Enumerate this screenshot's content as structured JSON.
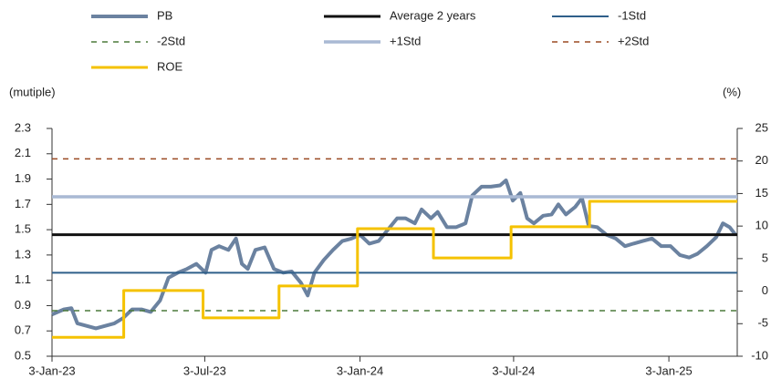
{
  "chart_data": {
    "type": "line",
    "ylabel": "(mutiple)",
    "y2label": "(%)",
    "xlim": [
      "2023-01-03",
      "2025-03-25"
    ],
    "xticks": [
      {
        "value": "2023-01-03",
        "label": "3-Jan-23"
      },
      {
        "value": "2023-07-03",
        "label": "3-Jul-23"
      },
      {
        "value": "2024-01-03",
        "label": "3-Jan-24"
      },
      {
        "value": "2024-07-03",
        "label": "3-Jul-24"
      },
      {
        "value": "2025-01-03",
        "label": "3-Jan-25"
      }
    ],
    "ylim": [
      0.5,
      2.3
    ],
    "yticks": [
      0.5,
      0.7,
      0.9,
      1.1,
      1.3,
      1.5,
      1.7,
      1.9,
      2.1,
      2.3
    ],
    "y2lim": [
      -10,
      25
    ],
    "y2ticks": [
      -10,
      -5,
      0,
      5,
      10,
      15,
      20,
      25
    ],
    "grid": false,
    "series": [
      {
        "name": "PB",
        "color": "#6b82a0",
        "x": [
          "2023-01-03",
          "2023-01-17",
          "2023-01-26",
          "2023-02-02",
          "2023-02-13",
          "2023-02-24",
          "2023-03-07",
          "2023-03-18",
          "2023-03-28",
          "2023-04-08",
          "2023-04-19",
          "2023-04-30",
          "2023-05-11",
          "2023-05-21",
          "2023-06-01",
          "2023-06-12",
          "2023-06-23",
          "2023-07-04",
          "2023-07-11",
          "2023-07-20",
          "2023-07-31",
          "2023-08-09",
          "2023-08-16",
          "2023-08-23",
          "2023-09-01",
          "2023-09-12",
          "2023-09-23",
          "2023-10-04",
          "2023-10-14",
          "2023-10-25",
          "2023-11-02",
          "2023-11-10",
          "2023-11-21",
          "2023-12-02",
          "2023-12-13",
          "2023-12-24",
          "2024-01-03",
          "2024-01-14",
          "2024-01-25",
          "2024-02-05",
          "2024-02-16",
          "2024-02-26",
          "2024-03-08",
          "2024-03-16",
          "2024-03-27",
          "2024-04-04",
          "2024-04-15",
          "2024-04-26",
          "2024-05-07",
          "2024-05-15",
          "2024-05-26",
          "2024-06-06",
          "2024-06-17",
          "2024-06-24",
          "2024-07-02",
          "2024-07-11",
          "2024-07-19",
          "2024-07-27",
          "2024-08-07",
          "2024-08-17",
          "2024-08-25",
          "2024-09-03",
          "2024-09-14",
          "2024-09-22",
          "2024-09-30",
          "2024-10-10",
          "2024-10-21",
          "2024-11-01",
          "2024-11-12",
          "2024-11-22",
          "2024-12-03",
          "2024-12-14",
          "2024-12-25",
          "2025-01-05",
          "2025-01-16",
          "2025-01-27",
          "2025-02-06",
          "2025-02-17",
          "2025-02-28",
          "2025-03-08",
          "2025-03-16",
          "2025-03-23"
        ],
        "values": [
          0.83,
          0.87,
          0.88,
          0.76,
          0.74,
          0.72,
          0.74,
          0.76,
          0.8,
          0.87,
          0.87,
          0.85,
          0.94,
          1.12,
          1.16,
          1.19,
          1.23,
          1.16,
          1.34,
          1.37,
          1.34,
          1.43,
          1.23,
          1.19,
          1.34,
          1.36,
          1.19,
          1.16,
          1.17,
          1.08,
          0.98,
          1.16,
          1.26,
          1.34,
          1.41,
          1.43,
          1.46,
          1.39,
          1.41,
          1.5,
          1.59,
          1.59,
          1.55,
          1.66,
          1.59,
          1.64,
          1.52,
          1.52,
          1.55,
          1.77,
          1.84,
          1.84,
          1.85,
          1.89,
          1.73,
          1.79,
          1.59,
          1.55,
          1.61,
          1.62,
          1.7,
          1.62,
          1.68,
          1.75,
          1.53,
          1.52,
          1.46,
          1.43,
          1.37,
          1.39,
          1.41,
          1.43,
          1.37,
          1.37,
          1.3,
          1.28,
          1.31,
          1.37,
          1.44,
          1.55,
          1.52,
          1.46
        ]
      },
      {
        "name": "Average 2 years",
        "color": "#111111",
        "value": 1.46
      },
      {
        "name": "-1Std",
        "color": "#2f5f8a",
        "value": 1.16
      },
      {
        "name": "-2Std",
        "color": "#4b7a3a",
        "value": 0.86,
        "line_style": "dashed"
      },
      {
        "name": "+1Std",
        "color": "#a9b9d4",
        "value": 1.76
      },
      {
        "name": "+2Std",
        "color": "#9b4a22",
        "value": 2.06,
        "line_style": "dashed"
      },
      {
        "name": "ROE",
        "color": "#f5c200",
        "axis": "y2",
        "step": true,
        "x": [
          "2023-01-03",
          "2023-03-29",
          "2023-07-01",
          "2023-09-29",
          "2023-12-31",
          "2024-03-30",
          "2024-06-30",
          "2024-10-01",
          "2025-03-25"
        ],
        "values": [
          -7.1,
          0.1,
          -4.1,
          0.8,
          9.6,
          5.1,
          9.9,
          13.8,
          13.8
        ]
      }
    ]
  }
}
